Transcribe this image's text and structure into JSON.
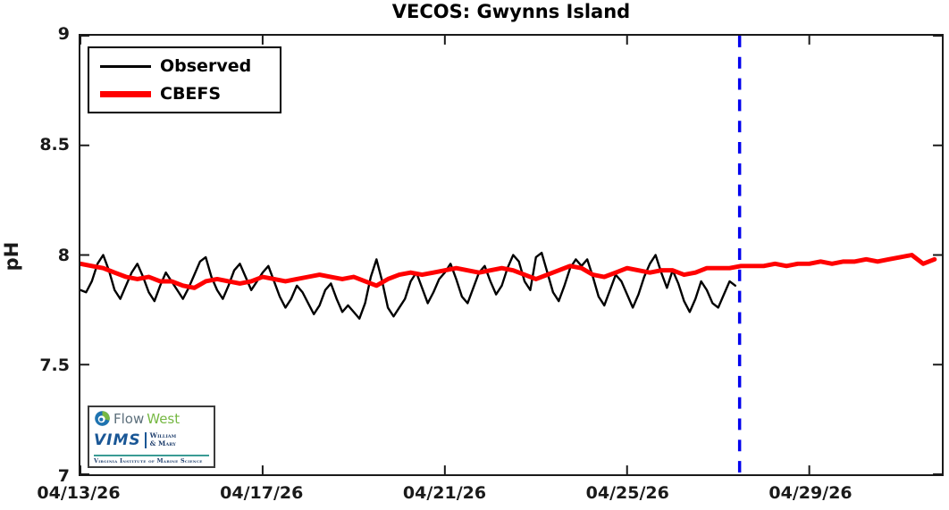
{
  "title": "VECOS: Gwynns Island",
  "axes": {
    "ylabel": "pH",
    "y_tick_labels": [
      "7",
      "7.5",
      "8",
      "8.5",
      "9"
    ],
    "x_tick_labels": [
      "04/13/26",
      "04/17/26",
      "04/21/26",
      "04/25/26",
      "04/29/26"
    ]
  },
  "legend": {
    "items": [
      {
        "label": "Observed",
        "color": "#000000",
        "sample_thickness": 3
      },
      {
        "label": "CBEFS",
        "color": "#ff0000",
        "sample_thickness": 7
      }
    ]
  },
  "colors": {
    "observed": "#000000",
    "cbefs": "#ff0000",
    "forecast_divider": "#0000ee",
    "axis": "#1a1a1a",
    "background": "#ffffff"
  },
  "logos": {
    "flowwest": {
      "flow": "Flow",
      "west": "West"
    },
    "vims": {
      "acronym": "VIMS",
      "college_line1": "William",
      "college_line2": "& Mary",
      "subtitle": "Virginia Institute of Marine Science"
    }
  },
  "chart_data": {
    "type": "line",
    "title": "VECOS: Gwynns Island",
    "xlabel": "",
    "ylabel": "pH",
    "ylim": [
      7,
      9
    ],
    "xlim": [
      0,
      18.91
    ],
    "x_unit": "days since 04/13/26",
    "x_ticks": [
      0,
      4,
      8,
      12,
      16
    ],
    "x_tick_labels": [
      "04/13/26",
      "04/17/26",
      "04/21/26",
      "04/25/26",
      "04/29/26"
    ],
    "y_ticks": [
      7,
      7.5,
      8,
      8.5,
      9
    ],
    "grid": false,
    "legend_position": "top-left",
    "forecast_divider_x": 14.47,
    "series": [
      {
        "name": "Observed",
        "color": "#000000",
        "stroke_width": 2.4,
        "t_start": 0,
        "t_step": 0.125,
        "values": [
          7.84,
          7.83,
          7.88,
          7.96,
          8.0,
          7.93,
          7.84,
          7.8,
          7.86,
          7.92,
          7.96,
          7.9,
          7.83,
          7.79,
          7.86,
          7.92,
          7.88,
          7.84,
          7.8,
          7.85,
          7.91,
          7.97,
          7.99,
          7.9,
          7.84,
          7.8,
          7.86,
          7.93,
          7.96,
          7.9,
          7.84,
          7.88,
          7.92,
          7.95,
          7.88,
          7.81,
          7.76,
          7.8,
          7.86,
          7.83,
          7.78,
          7.73,
          7.77,
          7.84,
          7.87,
          7.8,
          7.74,
          7.77,
          7.74,
          7.71,
          7.78,
          7.9,
          7.98,
          7.88,
          7.76,
          7.72,
          7.76,
          7.8,
          7.88,
          7.92,
          7.85,
          7.78,
          7.83,
          7.89,
          7.92,
          7.96,
          7.89,
          7.81,
          7.78,
          7.85,
          7.92,
          7.95,
          7.88,
          7.82,
          7.86,
          7.94,
          8.0,
          7.97,
          7.88,
          7.84,
          7.99,
          8.01,
          7.92,
          7.83,
          7.79,
          7.86,
          7.94,
          7.98,
          7.95,
          7.98,
          7.9,
          7.81,
          7.77,
          7.84,
          7.91,
          7.88,
          7.82,
          7.76,
          7.82,
          7.9,
          7.96,
          8.0,
          7.92,
          7.85,
          7.93,
          7.87,
          7.79,
          7.74,
          7.8,
          7.88,
          7.84,
          7.78,
          7.76,
          7.82,
          7.88,
          7.86
        ]
      },
      {
        "name": "CBEFS",
        "color": "#ff0000",
        "stroke_width": 5,
        "t_start": 0,
        "t_step": 0.25,
        "values": [
          7.96,
          7.95,
          7.94,
          7.92,
          7.9,
          7.89,
          7.9,
          7.88,
          7.88,
          7.86,
          7.85,
          7.88,
          7.89,
          7.88,
          7.87,
          7.88,
          7.9,
          7.89,
          7.88,
          7.89,
          7.9,
          7.91,
          7.9,
          7.89,
          7.9,
          7.88,
          7.86,
          7.89,
          7.91,
          7.92,
          7.91,
          7.92,
          7.93,
          7.94,
          7.93,
          7.92,
          7.93,
          7.94,
          7.93,
          7.91,
          7.89,
          7.91,
          7.93,
          7.95,
          7.94,
          7.91,
          7.9,
          7.92,
          7.94,
          7.93,
          7.92,
          7.93,
          7.93,
          7.91,
          7.92,
          7.94,
          7.94,
          7.94,
          7.95,
          7.95,
          7.95,
          7.96,
          7.95,
          7.96,
          7.96,
          7.97,
          7.96,
          7.97,
          7.97,
          7.98,
          7.97,
          7.98,
          7.99,
          8.0,
          7.96,
          7.98
        ]
      }
    ]
  }
}
